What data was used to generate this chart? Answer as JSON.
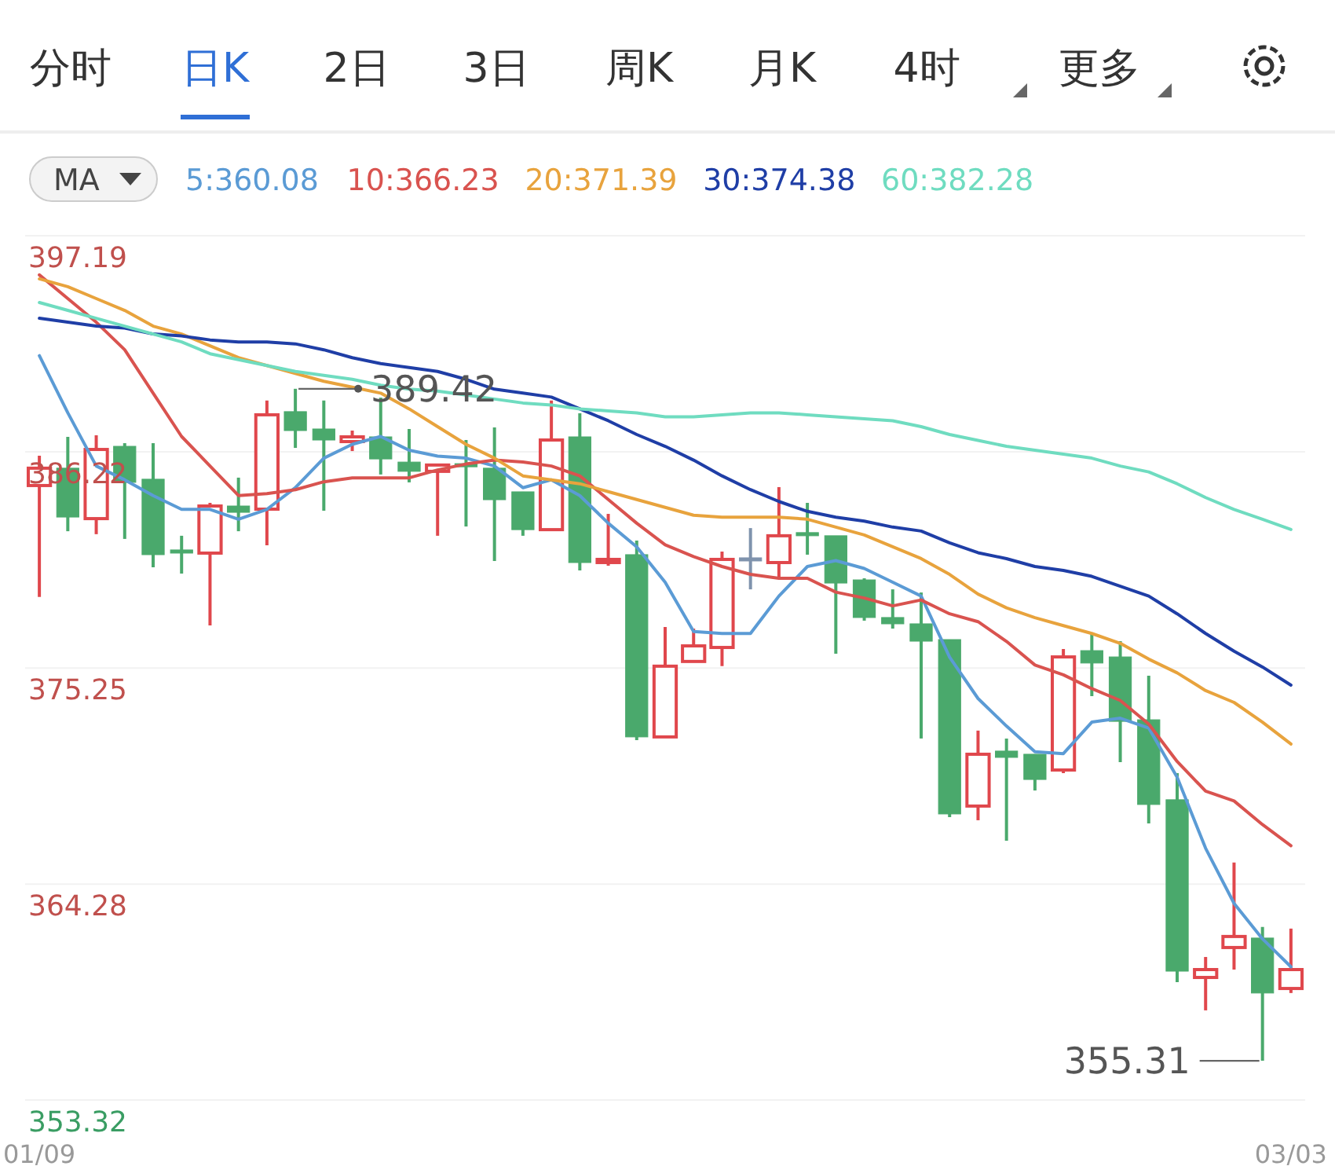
{
  "chart_data": {
    "type": "candlestick",
    "categories": [
      "01/09",
      null,
      null,
      null,
      null,
      null,
      null,
      null,
      null,
      null,
      null,
      null,
      null,
      null,
      null,
      null,
      null,
      null,
      null,
      null,
      null,
      null,
      null,
      null,
      null,
      null,
      null,
      null,
      null,
      null,
      null,
      null,
      null,
      null,
      null,
      null,
      null,
      null,
      null,
      null,
      null,
      null,
      null,
      null,
      "03/03"
    ],
    "ohlc": [
      [
        384.51,
        386.02,
        378.85,
        385.39
      ],
      [
        385.39,
        386.98,
        382.19,
        382.91
      ],
      [
        382.83,
        387.06,
        382.04,
        386.34
      ],
      [
        386.5,
        386.66,
        381.8,
        384.67
      ],
      [
        384.83,
        386.66,
        380.36,
        381.0
      ],
      [
        381.24,
        381.96,
        380.04,
        381.08
      ],
      [
        381.08,
        383.63,
        377.41,
        383.47
      ],
      [
        383.47,
        384.91,
        382.19,
        383.15
      ],
      [
        383.31,
        388.82,
        381.48,
        388.1
      ],
      [
        388.26,
        389.42,
        386.42,
        387.3
      ],
      [
        387.38,
        388.82,
        383.23,
        386.82
      ],
      [
        386.74,
        387.3,
        386.26,
        386.98
      ],
      [
        386.98,
        388.97,
        385.07,
        385.86
      ],
      [
        385.7,
        387.38,
        384.67,
        385.23
      ],
      [
        385.23,
        385.55,
        381.96,
        385.55
      ],
      [
        385.62,
        386.82,
        382.43,
        385.47
      ],
      [
        385.39,
        387.46,
        380.68,
        383.79
      ],
      [
        384.19,
        384.19,
        381.96,
        382.27
      ],
      [
        382.27,
        388.82,
        382.27,
        386.82
      ],
      [
        386.98,
        388.18,
        380.2,
        380.6
      ],
      [
        380.68,
        383.07,
        380.44,
        380.76
      ],
      [
        381.0,
        381.72,
        371.59,
        371.75
      ],
      [
        371.75,
        377.33,
        371.75,
        375.34
      ],
      [
        375.58,
        377.25,
        375.58,
        376.37
      ],
      [
        376.29,
        381.16,
        375.34,
        380.76
      ],
      [
        380.84,
        382.35,
        379.24,
        380.84
      ],
      [
        380.6,
        384.43,
        379.8,
        381.96
      ],
      [
        382.12,
        383.63,
        381.0,
        381.96
      ],
      [
        381.96,
        381.96,
        375.97,
        379.56
      ],
      [
        379.72,
        379.8,
        377.65,
        377.81
      ],
      [
        377.81,
        379.24,
        377.25,
        377.49
      ],
      [
        377.49,
        379.08,
        371.67,
        376.61
      ],
      [
        376.69,
        376.69,
        367.68,
        367.84
      ],
      [
        368.24,
        372.07,
        367.52,
        370.87
      ],
      [
        371.03,
        371.67,
        366.48,
        370.71
      ],
      [
        370.87,
        370.87,
        369.03,
        369.59
      ],
      [
        370.07,
        376.21,
        369.91,
        375.81
      ],
      [
        376.13,
        377.01,
        373.82,
        375.5
      ],
      [
        375.81,
        376.61,
        370.47,
        372.54
      ],
      [
        372.62,
        374.86,
        367.36,
        368.32
      ],
      [
        368.56,
        369.91,
        359.3,
        359.86
      ],
      [
        359.54,
        360.58,
        357.87,
        359.94
      ],
      [
        361.06,
        365.37,
        359.94,
        361.62
      ],
      [
        361.54,
        362.1,
        355.31,
        358.75
      ],
      [
        358.98,
        362.02,
        358.75,
        359.94
      ]
    ],
    "colors": [
      "#e0474c",
      "#4aa96c",
      "#e0474c",
      "#4aa96c",
      "#4aa96c",
      "#4aa96c",
      "#e0474c",
      "#4aa96c",
      "#e0474c",
      "#4aa96c",
      "#4aa96c",
      "#e0474c",
      "#4aa96c",
      "#4aa96c",
      "#e0474c",
      "#4aa96c",
      "#4aa96c",
      "#4aa96c",
      "#e0474c",
      "#4aa96c",
      "#e0474c",
      "#4aa96c",
      "#e0474c",
      "#e0474c",
      "#e0474c",
      "#7f93ad",
      "#e0474c",
      "#4aa96c",
      "#4aa96c",
      "#4aa96c",
      "#4aa96c",
      "#4aa96c",
      "#4aa96c",
      "#e0474c",
      "#4aa96c",
      "#4aa96c",
      "#e0474c",
      "#4aa96c",
      "#4aa96c",
      "#4aa96c",
      "#4aa96c",
      "#e0474c",
      "#e0474c",
      "#4aa96c",
      "#e0474c"
    ],
    "series": [
      {
        "name": "5:360.08",
        "type": "line",
        "color": "#5b9bd5",
        "values": [
          391.1,
          388.2,
          385.5,
          384.8,
          384.0,
          383.3,
          383.3,
          382.8,
          383.3,
          384.4,
          385.9,
          386.6,
          387.0,
          386.3,
          386.0,
          385.9,
          385.5,
          384.4,
          384.8,
          384.0,
          382.6,
          381.4,
          379.6,
          377.1,
          377.0,
          377.0,
          378.9,
          380.4,
          380.7,
          380.3,
          379.6,
          378.9,
          375.8,
          373.7,
          372.3,
          371.0,
          370.9,
          372.5,
          372.7,
          372.2,
          369.7,
          366.1,
          363.3,
          361.5,
          360.08
        ]
      },
      {
        "name": "10:366.23",
        "type": "line",
        "color": "#d9534f",
        "values": [
          395.2,
          394.0,
          392.8,
          391.4,
          389.2,
          387.0,
          385.5,
          384.0,
          384.1,
          384.3,
          384.7,
          384.9,
          384.9,
          384.9,
          385.3,
          385.6,
          385.8,
          385.7,
          385.5,
          385.0,
          383.8,
          382.6,
          381.5,
          380.9,
          380.4,
          380.0,
          379.8,
          379.8,
          379.1,
          378.8,
          378.4,
          378.7,
          378.0,
          377.6,
          376.6,
          375.4,
          374.9,
          374.2,
          373.6,
          372.4,
          370.5,
          369.0,
          368.5,
          367.3,
          366.23
        ]
      },
      {
        "name": "20:371.39",
        "type": "line",
        "color": "#e8a33d",
        "values": [
          395.0,
          394.6,
          394.0,
          393.4,
          392.6,
          392.2,
          391.6,
          391.0,
          390.6,
          390.2,
          389.8,
          389.5,
          389.2,
          388.4,
          387.5,
          386.6,
          385.9,
          385.0,
          384.8,
          384.6,
          384.2,
          383.8,
          383.4,
          383.0,
          382.9,
          382.9,
          382.9,
          382.8,
          382.4,
          382.0,
          381.4,
          380.8,
          380.0,
          379.0,
          378.3,
          377.8,
          377.4,
          377.0,
          376.5,
          375.7,
          375.0,
          374.1,
          373.5,
          372.5,
          371.39
        ]
      },
      {
        "name": "30:374.38",
        "type": "line",
        "color": "#1f3ea6",
        "values": [
          393.0,
          392.8,
          392.6,
          392.5,
          392.2,
          392.1,
          391.9,
          391.8,
          391.8,
          391.7,
          391.4,
          391.0,
          390.7,
          390.5,
          390.3,
          389.9,
          389.4,
          389.2,
          389.0,
          388.4,
          387.8,
          387.1,
          386.5,
          385.8,
          385.0,
          384.3,
          383.7,
          383.2,
          382.9,
          382.7,
          382.4,
          382.2,
          381.6,
          381.1,
          380.8,
          380.4,
          380.2,
          379.9,
          379.4,
          378.9,
          378.0,
          377.0,
          376.1,
          375.3,
          374.38
        ]
      },
      {
        "name": "60:382.28",
        "type": "line",
        "color": "#6fdcc0",
        "values": [
          393.8,
          393.4,
          393.0,
          392.6,
          392.2,
          391.8,
          391.2,
          390.9,
          390.6,
          390.3,
          390.1,
          389.9,
          389.6,
          389.4,
          389.3,
          389.1,
          388.9,
          388.7,
          388.6,
          388.4,
          388.3,
          388.2,
          388.0,
          388.0,
          388.1,
          388.2,
          388.2,
          388.1,
          388.0,
          387.9,
          387.8,
          387.5,
          387.1,
          386.8,
          386.5,
          386.3,
          386.1,
          385.9,
          385.5,
          385.2,
          384.6,
          383.9,
          383.3,
          382.8,
          382.28
        ]
      }
    ],
    "ylim": [
      353.32,
      397.19
    ],
    "yticks": [
      397.19,
      386.22,
      375.25,
      364.28,
      353.32
    ],
    "grid": "y",
    "legend": "top left",
    "annotations": [
      "分时",
      "日K",
      "2日",
      "3日",
      "周K",
      "月K",
      "4时",
      "更多",
      "MA",
      {
        "text": "389.42",
        "y": 389.42
      },
      "355.31"
    ]
  }
}
